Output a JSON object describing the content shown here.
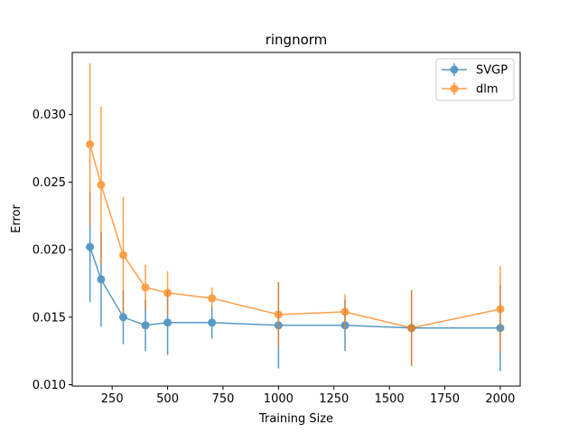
{
  "chart_data": {
    "type": "line",
    "title": "ringnorm",
    "xlabel": "Training Size",
    "ylabel": "Error",
    "xlim": [
      70,
      2090
    ],
    "ylim": [
      0.0099,
      0.0346
    ],
    "xticks": [
      250,
      500,
      750,
      1000,
      1250,
      1500,
      1750,
      2000
    ],
    "xtick_labels": [
      "250",
      "500",
      "750",
      "1000",
      "1250",
      "1500",
      "1750",
      "2000"
    ],
    "yticks": [
      0.01,
      0.015,
      0.02,
      0.025,
      0.03
    ],
    "ytick_labels": [
      "0.010",
      "0.015",
      "0.020",
      "0.025",
      "0.030"
    ],
    "grid": false,
    "legend_position": "top-right",
    "x": [
      150,
      200,
      300,
      400,
      500,
      700,
      1000,
      1300,
      1600,
      2000
    ],
    "series": [
      {
        "name": "SVGP",
        "color": "#1f77b4",
        "values": [
          0.0202,
          0.0178,
          0.015,
          0.0144,
          0.0146,
          0.0146,
          0.0144,
          0.0144,
          0.0142,
          0.0142
        ],
        "errors": [
          0.0041,
          0.0035,
          0.002,
          0.0019,
          0.0024,
          0.0012,
          0.0032,
          0.0019,
          0.0028,
          0.0032
        ]
      },
      {
        "name": "dlm",
        "color": "#ff7f0e",
        "values": [
          0.0278,
          0.0248,
          0.0196,
          0.0172,
          0.0168,
          0.0164,
          0.0152,
          0.0154,
          0.0142,
          0.0156
        ],
        "errors": [
          0.006,
          0.0058,
          0.0043,
          0.0017,
          0.0016,
          0.0008,
          0.0024,
          0.0013,
          0.0028,
          0.0032
        ]
      }
    ]
  }
}
